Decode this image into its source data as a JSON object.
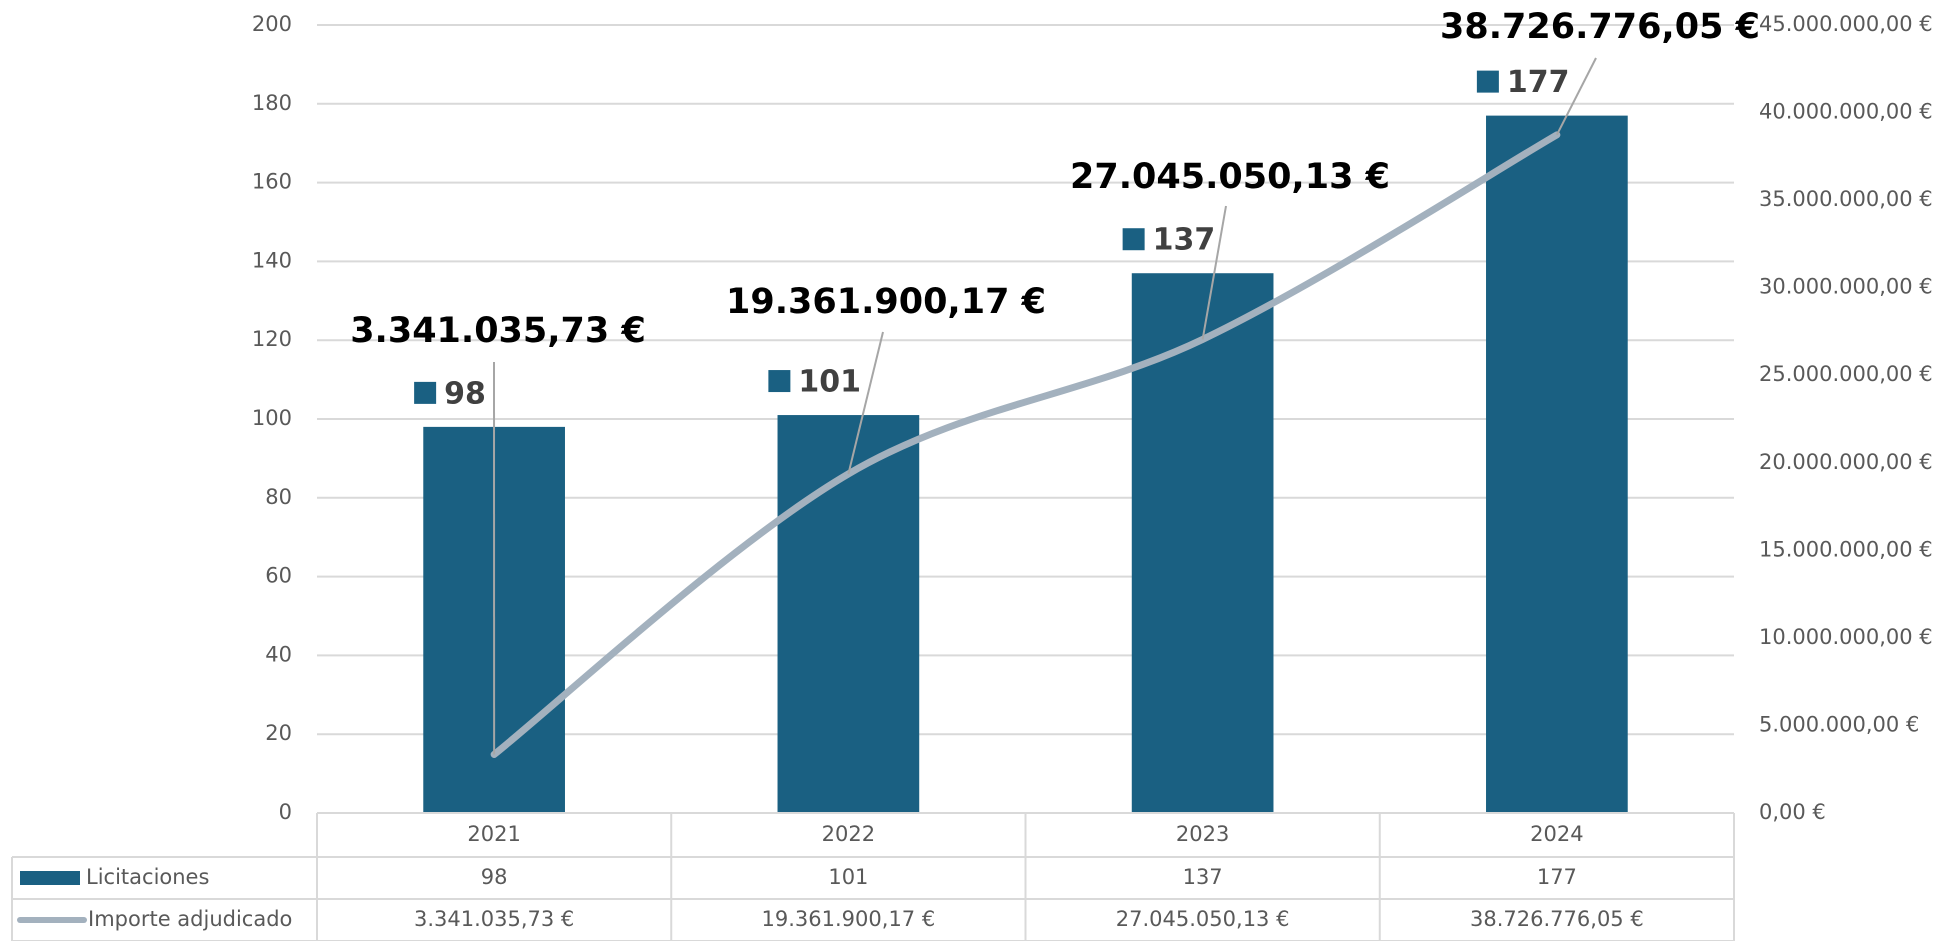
{
  "chart_data": {
    "type": "bar-line",
    "categories": [
      "2021",
      "2022",
      "2023",
      "2024"
    ],
    "series": [
      {
        "name": "Licitaciones",
        "type": "bar",
        "color": "#1a6082",
        "values": [
          98,
          101,
          137,
          177
        ]
      },
      {
        "name": "Importe adjudicado",
        "type": "line",
        "axis": "y2",
        "color": "#a3b1be",
        "values": [
          3341035.73,
          19361900.17,
          27045050.13,
          38726776.05
        ],
        "value_labels": [
          "3.341.035,73 €",
          "19.361.900,17 €",
          "27.045.050,13 €",
          "38.726.776,05 €"
        ]
      }
    ],
    "ylim": [
      0,
      200
    ],
    "yticks": [
      0,
      20,
      40,
      60,
      80,
      100,
      120,
      140,
      160,
      180,
      200
    ],
    "y2lim": [
      0,
      45000000
    ],
    "y2ticks": [
      {
        "value": 0,
        "label": "0,00 €"
      },
      {
        "value": 5000000,
        "label": "5.000.000,00 €"
      },
      {
        "value": 10000000,
        "label": "10.000.000,00 €"
      },
      {
        "value": 15000000,
        "label": "15.000.000,00 €"
      },
      {
        "value": 20000000,
        "label": "20.000.000,00 €"
      },
      {
        "value": 25000000,
        "label": "25.000.000,00 €"
      },
      {
        "value": 30000000,
        "label": "30.000.000,00 €"
      },
      {
        "value": 35000000,
        "label": "35.000.000,00 €"
      },
      {
        "value": 40000000,
        "label": "40.000.000,00 €"
      },
      {
        "value": 45000000,
        "label": "45.000.000,00 €"
      }
    ],
    "grid": true,
    "data_table": true
  }
}
